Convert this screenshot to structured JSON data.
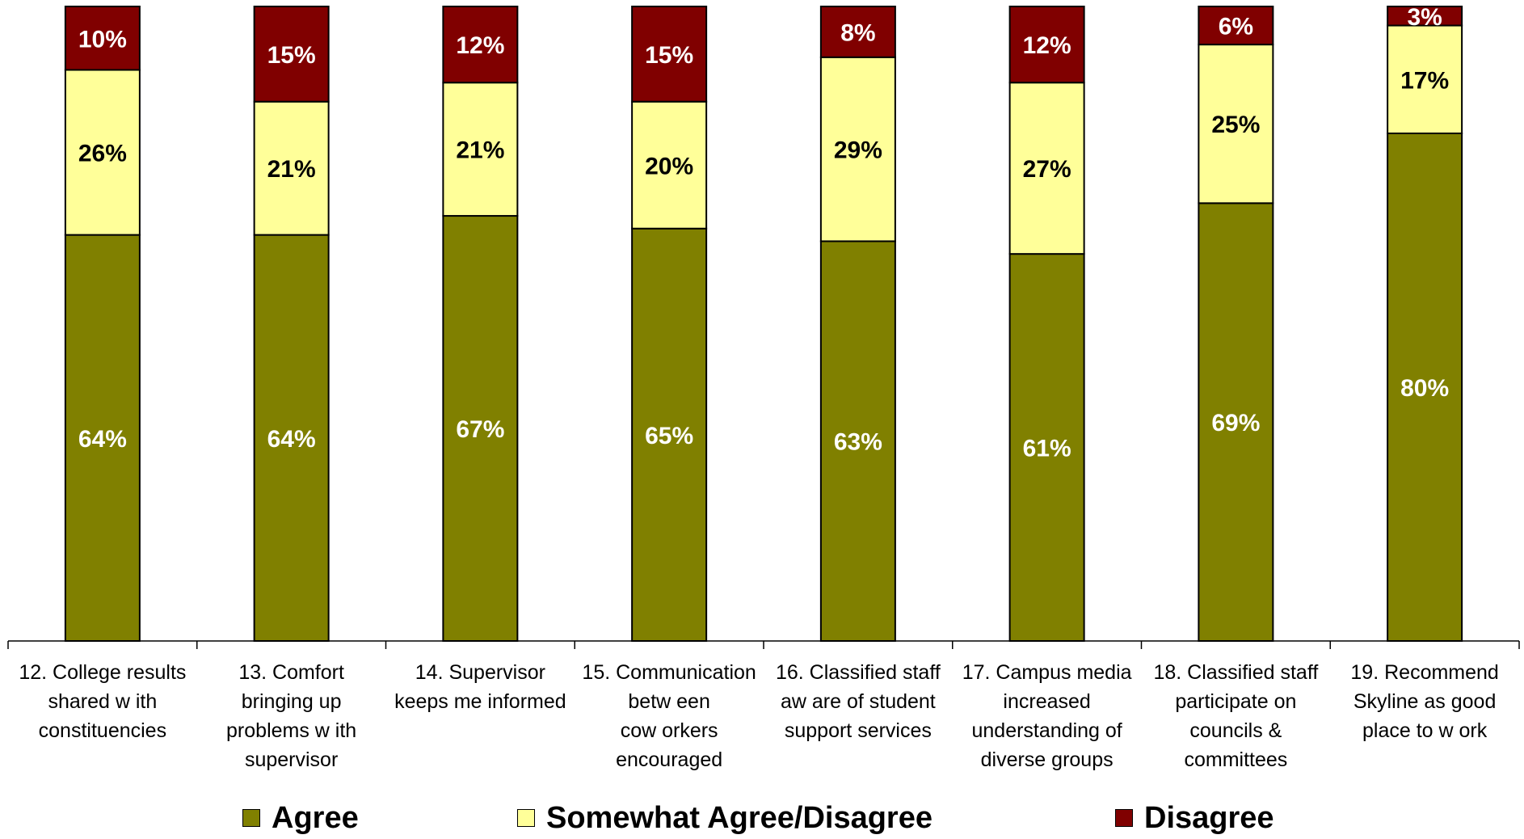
{
  "chart_data": {
    "type": "bar",
    "stacked": true,
    "categories": [
      "12. College results shared with constituencies",
      "13. Comfort bringing up problems with supervisor",
      "14. Supervisor keeps me informed",
      "15. Communication between coworkers encouraged",
      "16. Classified staff aware of student support services",
      "17. Campus media increased understanding of diverse groups",
      "18. Classified staff participate on councils & committees",
      "19. Recommend Skyline as good place to work"
    ],
    "category_lines": [
      [
        "12. College results",
        "shared w ith",
        "constituencies"
      ],
      [
        "13. Comfort",
        "bringing up",
        "problems w ith",
        "supervisor"
      ],
      [
        "14. Supervisor",
        "keeps me informed"
      ],
      [
        "15. Communication",
        "betw een",
        "cow orkers",
        "encouraged"
      ],
      [
        "16. Classified staff",
        "aw are of student",
        "support services"
      ],
      [
        "17. Campus media",
        "increased",
        "understanding of",
        "diverse groups"
      ],
      [
        "18. Classified staff",
        "participate on",
        "councils &",
        "committees"
      ],
      [
        "19. Recommend",
        "Skyline as good",
        "place to w ork"
      ]
    ],
    "series": [
      {
        "name": "Agree",
        "color": "#808000",
        "label_color": "#ffffff",
        "values": [
          64,
          64,
          67,
          65,
          63,
          61,
          69,
          80
        ]
      },
      {
        "name": "Somewhat Agree/Disagree",
        "color": "#ffff99",
        "label_color": "#000000",
        "values": [
          26,
          21,
          21,
          20,
          29,
          27,
          25,
          17
        ]
      },
      {
        "name": "Disagree",
        "color": "#800000",
        "label_color": "#ffffff",
        "values": [
          10,
          15,
          12,
          15,
          8,
          12,
          6,
          3
        ]
      }
    ],
    "ylim": [
      0,
      100
    ],
    "value_suffix": "%",
    "grid": false,
    "legend_position": "bottom"
  }
}
